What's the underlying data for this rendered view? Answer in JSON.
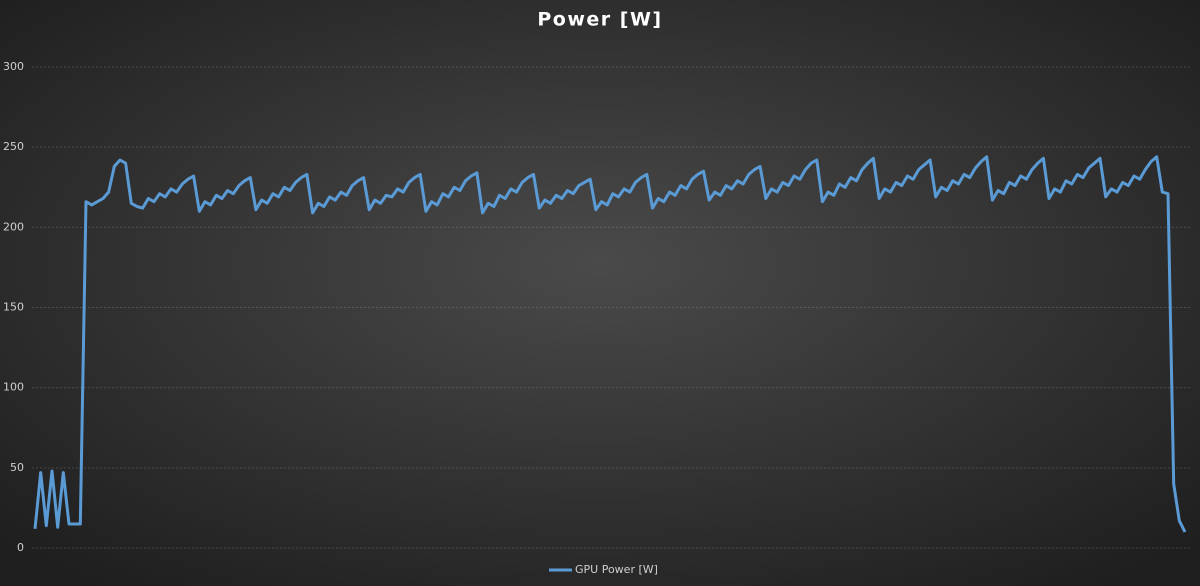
{
  "chart_data": {
    "type": "line",
    "title": "Power [W]",
    "ylim": [
      0,
      300
    ],
    "yticks": [
      0,
      50,
      100,
      150,
      200,
      250,
      300
    ],
    "grid": true,
    "legend": "bottom",
    "series": [
      {
        "name": "GPU Power [W]",
        "color": "#5b9bd5",
        "values": [
          12,
          47,
          14,
          48,
          13,
          47,
          15,
          15,
          15,
          216,
          214,
          216,
          218,
          222,
          238,
          242,
          240,
          215,
          213,
          212,
          218,
          216,
          221,
          219,
          224,
          222,
          227,
          230,
          232,
          210,
          216,
          214,
          220,
          218,
          223,
          221,
          226,
          229,
          231,
          211,
          217,
          215,
          221,
          219,
          225,
          223,
          228,
          231,
          233,
          209,
          215,
          213,
          219,
          217,
          222,
          220,
          226,
          229,
          231,
          211,
          217,
          215,
          220,
          219,
          224,
          222,
          228,
          231,
          233,
          210,
          216,
          214,
          221,
          219,
          225,
          223,
          229,
          232,
          234,
          209,
          215,
          213,
          220,
          218,
          224,
          222,
          228,
          231,
          233,
          212,
          217,
          215,
          220,
          218,
          223,
          221,
          226,
          228,
          230,
          211,
          216,
          214,
          221,
          219,
          224,
          222,
          228,
          231,
          233,
          212,
          218,
          216,
          222,
          220,
          226,
          224,
          230,
          233,
          235,
          217,
          222,
          220,
          226,
          224,
          229,
          227,
          233,
          236,
          238,
          218,
          224,
          222,
          228,
          226,
          232,
          230,
          236,
          240,
          242,
          216,
          222,
          220,
          227,
          225,
          231,
          229,
          236,
          240,
          243,
          218,
          224,
          222,
          228,
          226,
          232,
          230,
          236,
          239,
          242,
          219,
          225,
          223,
          229,
          227,
          233,
          231,
          237,
          241,
          244,
          217,
          223,
          221,
          228,
          226,
          232,
          230,
          236,
          240,
          243,
          218,
          224,
          222,
          229,
          227,
          233,
          231,
          237,
          240,
          243,
          219,
          224,
          222,
          228,
          226,
          232,
          230,
          236,
          241,
          244,
          222,
          221,
          40,
          17,
          10
        ]
      }
    ]
  }
}
